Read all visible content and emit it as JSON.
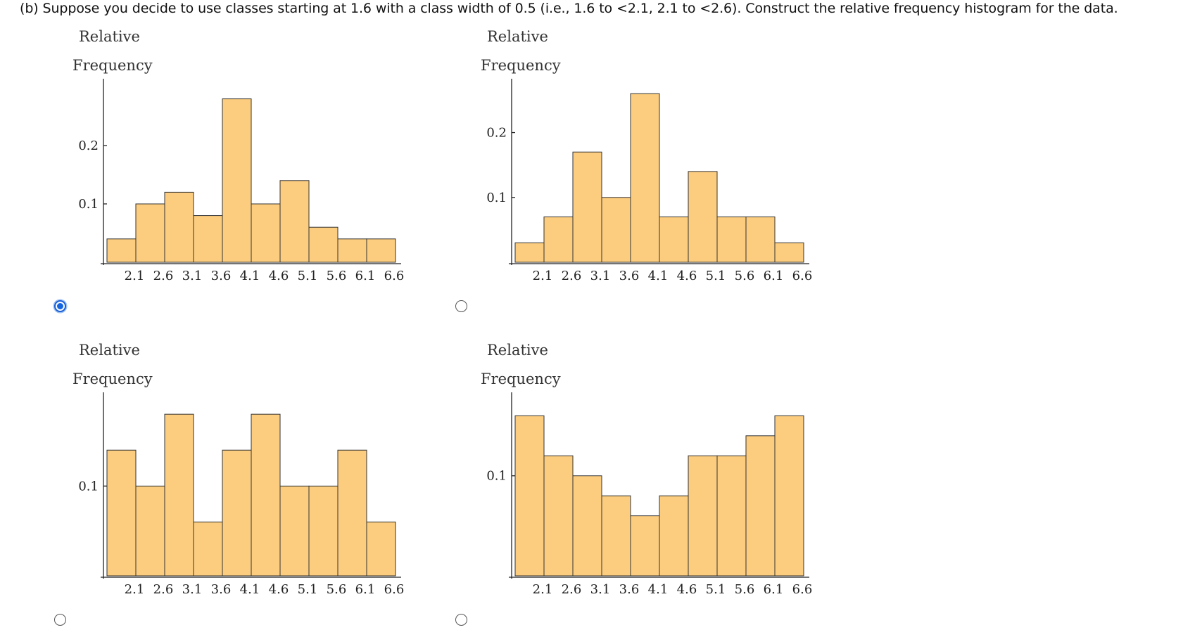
{
  "question": "(b)  Suppose you decide to use classes starting at 1.6 with a class width of 0.5 (i.e., 1.6 to <2.1, 2.1 to <2.6). Construct the relative frequency histogram for the data.",
  "colors": {
    "bar_fill": "#fccd7f",
    "bar_stroke": "#333333",
    "radio_selected": "#1565e0"
  },
  "options": [
    {
      "selected": true
    },
    {
      "selected": false
    },
    {
      "selected": false
    },
    {
      "selected": false
    }
  ],
  "chart_data": [
    {
      "type": "bar",
      "ylabel_line1": "Relative",
      "ylabel_line2": "Frequency",
      "bin_edges": [
        1.6,
        2.1,
        2.6,
        3.1,
        3.6,
        4.1,
        4.6,
        5.1,
        5.6,
        6.1,
        6.6
      ],
      "tick_labels": [
        "2.1",
        "2.6",
        "3.1",
        "3.6",
        "4.1",
        "4.6",
        "5.1",
        "5.6",
        "6.1",
        "6.6"
      ],
      "values": [
        0.04,
        0.1,
        0.12,
        0.08,
        0.28,
        0.1,
        0.14,
        0.06,
        0.04,
        0.04
      ],
      "yticks": [
        0.1,
        0.2
      ],
      "ylim": [
        0,
        0.3
      ]
    },
    {
      "type": "bar",
      "ylabel_line1": "Relative",
      "ylabel_line2": "Frequency",
      "bin_edges": [
        1.6,
        2.1,
        2.6,
        3.1,
        3.6,
        4.1,
        4.6,
        5.1,
        5.6,
        6.1,
        6.6
      ],
      "tick_labels": [
        "2.1",
        "2.6",
        "3.1",
        "3.6",
        "4.1",
        "4.6",
        "5.1",
        "5.6",
        "6.1",
        "6.6"
      ],
      "values": [
        0.03,
        0.07,
        0.17,
        0.1,
        0.26,
        0.07,
        0.14,
        0.07,
        0.07,
        0.03
      ],
      "yticks": [
        0.1,
        0.2
      ],
      "ylim": [
        0,
        0.27
      ]
    },
    {
      "type": "bar",
      "ylabel_line1": "Relative",
      "ylabel_line2": "Frequency",
      "bin_edges": [
        1.6,
        2.1,
        2.6,
        3.1,
        3.6,
        4.1,
        4.6,
        5.1,
        5.6,
        6.1,
        6.6
      ],
      "tick_labels": [
        "2.1",
        "2.6",
        "3.1",
        "3.6",
        "4.1",
        "4.6",
        "5.1",
        "5.6",
        "6.1",
        "6.6"
      ],
      "values": [
        0.14,
        0.1,
        0.18,
        0.06,
        0.14,
        0.18,
        0.1,
        0.1,
        0.14,
        0.06
      ],
      "yticks": [
        0.1
      ],
      "ylim": [
        0,
        0.195
      ]
    },
    {
      "type": "bar",
      "ylabel_line1": "Relative",
      "ylabel_line2": "Frequency",
      "bin_edges": [
        1.6,
        2.1,
        2.6,
        3.1,
        3.6,
        4.1,
        4.6,
        5.1,
        5.6,
        6.1,
        6.6
      ],
      "tick_labels": [
        "2.1",
        "2.6",
        "3.1",
        "3.6",
        "4.1",
        "4.6",
        "5.1",
        "5.6",
        "6.1",
        "6.6"
      ],
      "values": [
        0.16,
        0.12,
        0.1,
        0.08,
        0.06,
        0.08,
        0.12,
        0.12,
        0.14,
        0.16
      ],
      "yticks": [
        0.1
      ],
      "ylim": [
        0,
        0.175
      ]
    }
  ]
}
